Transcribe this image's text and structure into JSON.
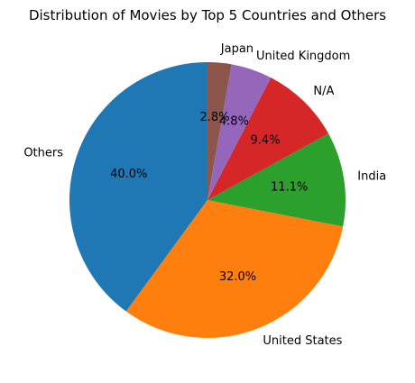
{
  "chart_data": {
    "type": "pie",
    "title": "Distribution of Movies by Top 5 Countries and Others",
    "start_angle_deg": 90,
    "direction": "counterclockwise",
    "slices": [
      {
        "label": "Others",
        "value": 40.0,
        "pct_label": "40.0%",
        "color": "#1f77b4"
      },
      {
        "label": "United States",
        "value": 32.0,
        "pct_label": "32.0%",
        "color": "#ff7f0e"
      },
      {
        "label": "India",
        "value": 11.1,
        "pct_label": "11.1%",
        "color": "#2ca02c"
      },
      {
        "label": "N/A",
        "value": 9.4,
        "pct_label": "9.4%",
        "color": "#d62728"
      },
      {
        "label": "United Kingdom",
        "value": 4.8,
        "pct_label": "4.8%",
        "color": "#9467bd"
      },
      {
        "label": "Japan",
        "value": 2.8,
        "pct_label": "2.8%",
        "color": "#8c564b"
      }
    ]
  }
}
